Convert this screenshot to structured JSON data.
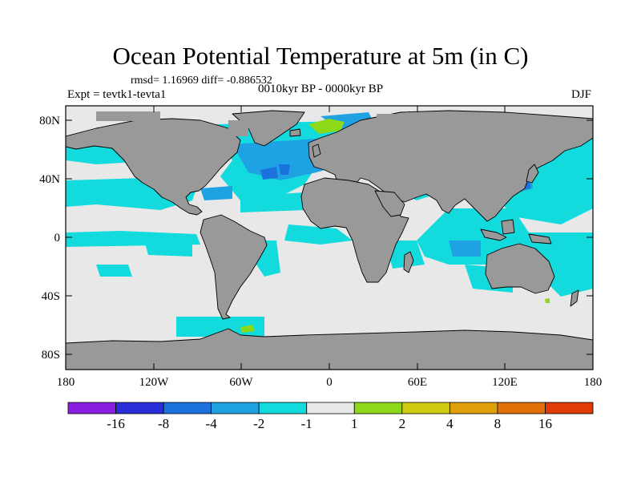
{
  "figure": {
    "title": "Ocean Potential Temperature at 5m (in C)",
    "stats": "rmsd= 1.16969 diff= -0.886532",
    "experiment": "Expt = tevtk1-tevta1",
    "period": "0010kyr BP - 0000kyr BP",
    "season": "DJF"
  },
  "chart_data": {
    "type": "heatmap",
    "title": "Ocean Potential Temperature at 5m (in C)",
    "xlabel": "",
    "ylabel": "",
    "x_ticks": [
      "180",
      "120W",
      "60W",
      "0",
      "60E",
      "120E",
      "180"
    ],
    "y_ticks": [
      "80N",
      "40N",
      "0",
      "40S",
      "80S"
    ],
    "xlim": [
      -180,
      180
    ],
    "ylim": [
      -90,
      90
    ],
    "colorbar": {
      "labels": [
        "-16",
        "-8",
        "-4",
        "-2",
        "-1",
        "1",
        "2",
        "4",
        "8",
        "16"
      ],
      "colors": [
        "#8a1ee0",
        "#2a2ed8",
        "#1c72dc",
        "#1fa2e4",
        "#13dadc",
        "#e8e8e8",
        "#8ed81a",
        "#d0cc12",
        "#e0a00c",
        "#e07008",
        "#e03a08"
      ]
    },
    "land_color": "#999999",
    "ocean_default_color": "#e8e8e8"
  }
}
